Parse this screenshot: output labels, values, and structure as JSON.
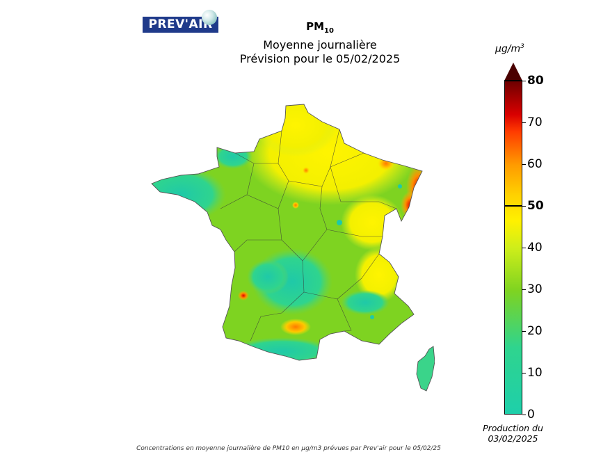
{
  "logo": {
    "text": "PREV'AIR"
  },
  "title": {
    "pollutant": "PM",
    "pollutant_sub": "10",
    "line2": "Moyenne journalière",
    "line3": "Prévision pour le 05/02/2025"
  },
  "legend": {
    "unit_base": "μg/m",
    "unit_exp": "3",
    "ticks": [
      {
        "value": 0,
        "label": "0",
        "bold": false
      },
      {
        "value": 10,
        "label": "10",
        "bold": false
      },
      {
        "value": 20,
        "label": "20",
        "bold": false
      },
      {
        "value": 30,
        "label": "30",
        "bold": false
      },
      {
        "value": 40,
        "label": "40",
        "bold": false
      },
      {
        "value": 50,
        "label": "50",
        "bold": true
      },
      {
        "value": 60,
        "label": "60",
        "bold": false
      },
      {
        "value": 70,
        "label": "70",
        "bold": false
      },
      {
        "value": 80,
        "label": "80",
        "bold": true
      }
    ],
    "min": 0,
    "max": 80,
    "threshold": 50
  },
  "production": {
    "line1": "Production du",
    "line2": "03/02/2025"
  },
  "caption": "Concentrations en moyenne journalière de PM10 en μg/m3 prévues par Prev'air pour le 05/02/25",
  "colors": {
    "low": "#1ecfaa",
    "mid": "#7ed321",
    "yellow": "#fff100",
    "orange": "#ff9a00",
    "red": "#ff2a00",
    "darkred": "#6e0000"
  }
}
